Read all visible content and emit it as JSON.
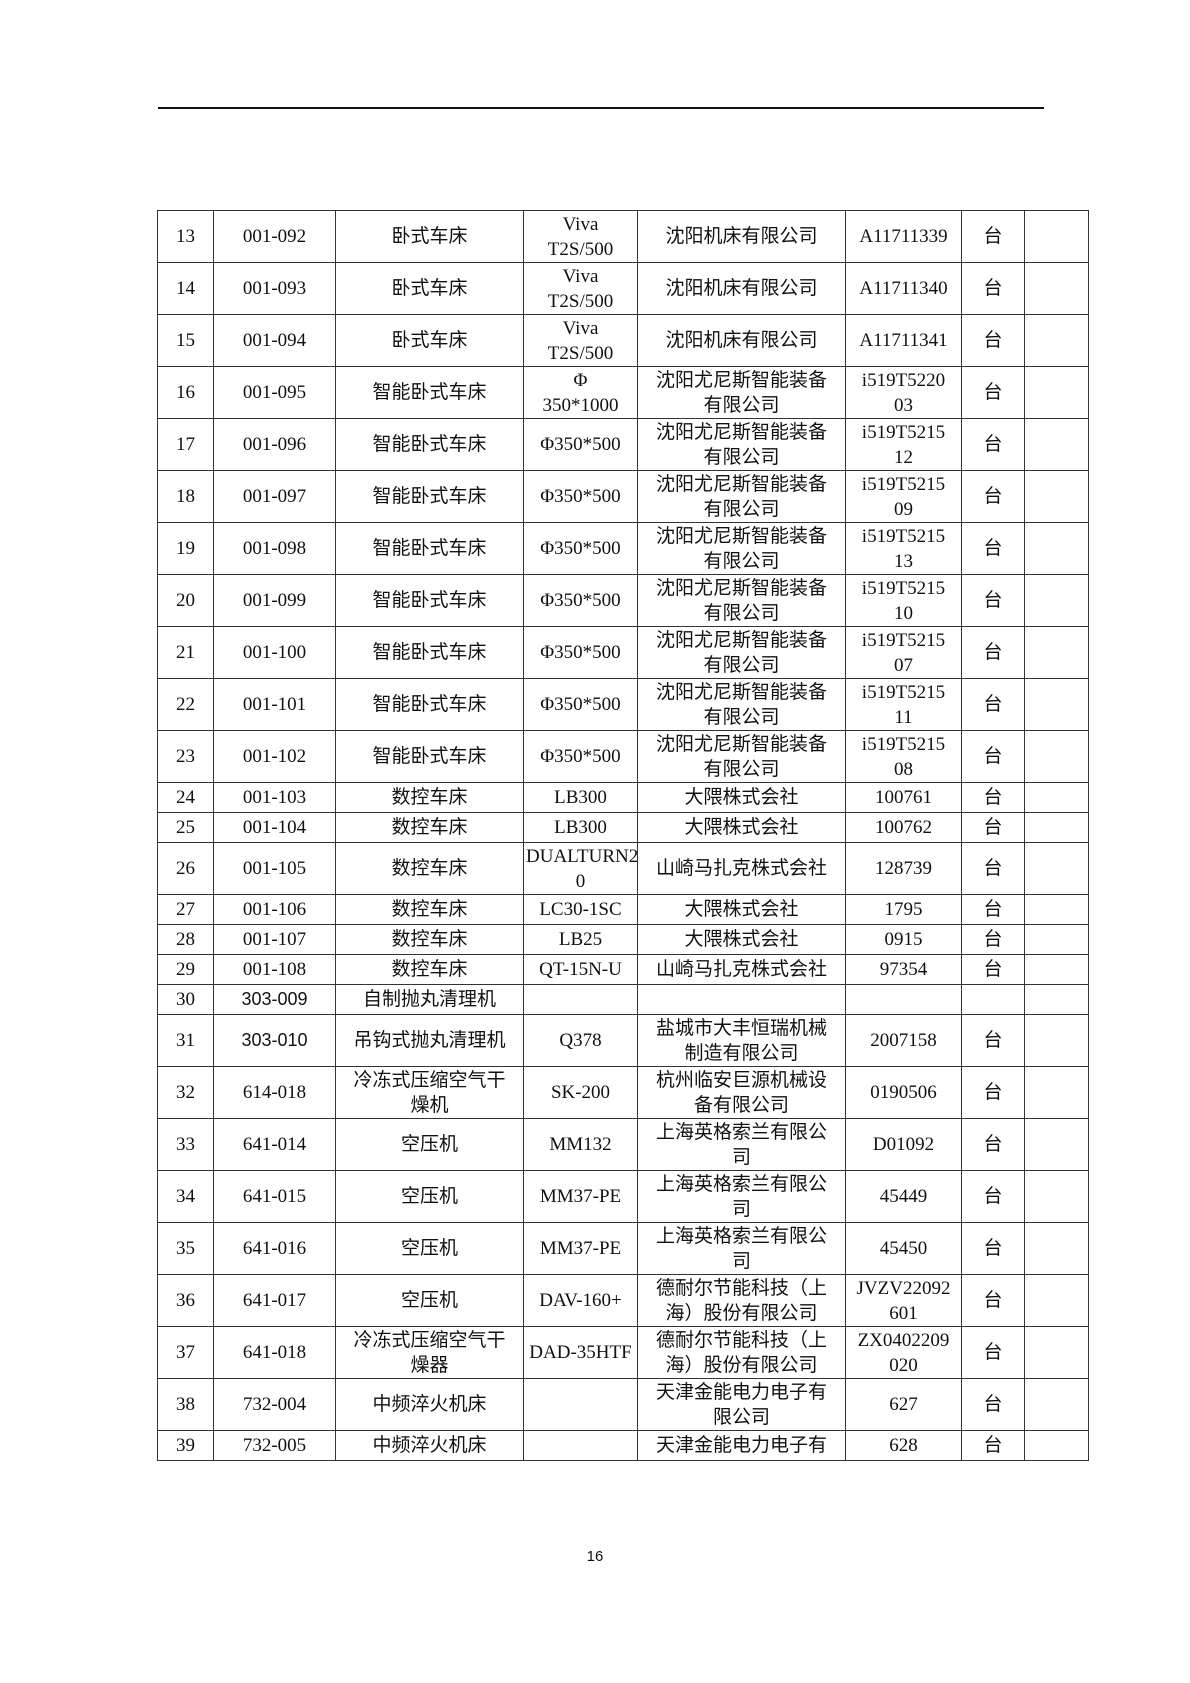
{
  "page_number": "16",
  "rows": [
    {
      "no": "13",
      "code": "001-092",
      "name": "卧式车床",
      "model": "Viva\nT2S/500",
      "maker": "沈阳机床有限公司",
      "serial": "A11711339",
      "unit": "台",
      "note": ""
    },
    {
      "no": "14",
      "code": "001-093",
      "name": "卧式车床",
      "model": "Viva\nT2S/500",
      "maker": "沈阳机床有限公司",
      "serial": "A11711340",
      "unit": "台",
      "note": ""
    },
    {
      "no": "15",
      "code": "001-094",
      "name": "卧式车床",
      "model": "Viva\nT2S/500",
      "maker": "沈阳机床有限公司",
      "serial": "A11711341",
      "unit": "台",
      "note": ""
    },
    {
      "no": "16",
      "code": "001-095",
      "name": "智能卧式车床",
      "model": "Φ\n350*1000",
      "maker": "沈阳尤尼斯智能装备\n有限公司",
      "serial": "i519T5220\n03",
      "unit": "台",
      "note": ""
    },
    {
      "no": "17",
      "code": "001-096",
      "name": "智能卧式车床",
      "model": "Φ350*500",
      "maker": "沈阳尤尼斯智能装备\n有限公司",
      "serial": "i519T5215\n12",
      "unit": "台",
      "note": ""
    },
    {
      "no": "18",
      "code": "001-097",
      "name": "智能卧式车床",
      "model": "Φ350*500",
      "maker": "沈阳尤尼斯智能装备\n有限公司",
      "serial": "i519T5215\n09",
      "unit": "台",
      "note": ""
    },
    {
      "no": "19",
      "code": "001-098",
      "name": "智能卧式车床",
      "model": "Φ350*500",
      "maker": "沈阳尤尼斯智能装备\n有限公司",
      "serial": "i519T5215\n13",
      "unit": "台",
      "note": ""
    },
    {
      "no": "20",
      "code": "001-099",
      "name": "智能卧式车床",
      "model": "Φ350*500",
      "maker": "沈阳尤尼斯智能装备\n有限公司",
      "serial": "i519T5215\n10",
      "unit": "台",
      "note": ""
    },
    {
      "no": "21",
      "code": "001-100",
      "name": "智能卧式车床",
      "model": "Φ350*500",
      "maker": "沈阳尤尼斯智能装备\n有限公司",
      "serial": "i519T5215\n07",
      "unit": "台",
      "note": ""
    },
    {
      "no": "22",
      "code": "001-101",
      "name": "智能卧式车床",
      "model": "Φ350*500",
      "maker": "沈阳尤尼斯智能装备\n有限公司",
      "serial": "i519T5215\n11",
      "unit": "台",
      "note": ""
    },
    {
      "no": "23",
      "code": "001-102",
      "name": "智能卧式车床",
      "model": "Φ350*500",
      "maker": "沈阳尤尼斯智能装备\n有限公司",
      "serial": "i519T5215\n08",
      "unit": "台",
      "note": ""
    },
    {
      "no": "24",
      "code": "001-103",
      "name": "数控车床",
      "model": "LB300",
      "maker": "大隈株式会社",
      "serial": "100761",
      "unit": "台",
      "note": ""
    },
    {
      "no": "25",
      "code": "001-104",
      "name": "数控车床",
      "model": "LB300",
      "maker": "大隈株式会社",
      "serial": "100762",
      "unit": "台",
      "note": ""
    },
    {
      "no": "26",
      "code": "001-105",
      "name": "数控车床",
      "model": "DUALTURN2\n0",
      "maker": "山崎马扎克株式会社",
      "serial": "128739",
      "unit": "台",
      "note": ""
    },
    {
      "no": "27",
      "code": "001-106",
      "name": "数控车床",
      "model": "LC30-1SC",
      "maker": "大隈株式会社",
      "serial": "1795",
      "unit": "台",
      "note": ""
    },
    {
      "no": "28",
      "code": "001-107",
      "name": "数控车床",
      "model": "LB25",
      "maker": "大隈株式会社",
      "serial": "0915",
      "unit": "台",
      "note": ""
    },
    {
      "no": "29",
      "code": "001-108",
      "name": "数控车床",
      "model": "QT-15N-U",
      "maker": "山崎马扎克株式会社",
      "serial": "97354",
      "unit": "台",
      "note": ""
    },
    {
      "no": "30",
      "code": "303-009",
      "name": "自制抛丸清理机",
      "model": "",
      "maker": "",
      "serial": "",
      "unit": "",
      "note": ""
    },
    {
      "no": "31",
      "code": "303-010",
      "name": "吊钩式抛丸清理机",
      "model": "Q378",
      "maker": "盐城市大丰恒瑞机械\n制造有限公司",
      "serial": "2007158",
      "unit": "台",
      "note": ""
    },
    {
      "no": "32",
      "code": "614-018",
      "name": "冷冻式压缩空气干\n燥机",
      "model": "SK-200",
      "maker": "杭州临安巨源机械设\n备有限公司",
      "serial": "0190506",
      "unit": "台",
      "note": ""
    },
    {
      "no": "33",
      "code": "641-014",
      "name": "空压机",
      "model": "MM132",
      "maker": "上海英格索兰有限公\n司",
      "serial": "D01092",
      "unit": "台",
      "note": ""
    },
    {
      "no": "34",
      "code": "641-015",
      "name": "空压机",
      "model": "MM37-PE",
      "maker": "上海英格索兰有限公\n司",
      "serial": "45449",
      "unit": "台",
      "note": ""
    },
    {
      "no": "35",
      "code": "641-016",
      "name": "空压机",
      "model": "MM37-PE",
      "maker": "上海英格索兰有限公\n司",
      "serial": "45450",
      "unit": "台",
      "note": ""
    },
    {
      "no": "36",
      "code": "641-017",
      "name": "空压机",
      "model": "DAV-160+",
      "maker": "德耐尔节能科技（上\n海）股份有限公司",
      "serial": "JVZV22092\n601",
      "unit": "台",
      "note": ""
    },
    {
      "no": "37",
      "code": "641-018",
      "name": "冷冻式压缩空气干\n燥器",
      "model": "DAD-35HTF",
      "maker": "德耐尔节能科技（上\n海）股份有限公司",
      "serial": "ZX0402209\n020",
      "unit": "台",
      "note": ""
    },
    {
      "no": "38",
      "code": "732-004",
      "name": "中频淬火机床",
      "model": "",
      "maker": "天津金能电力电子有\n限公司",
      "serial": "627",
      "unit": "台",
      "note": ""
    },
    {
      "no": "39",
      "code": "732-005",
      "name": "中频淬火机床",
      "model": "",
      "maker": "天津金能电力电子有",
      "serial": "628",
      "unit": "台",
      "note": ""
    }
  ]
}
